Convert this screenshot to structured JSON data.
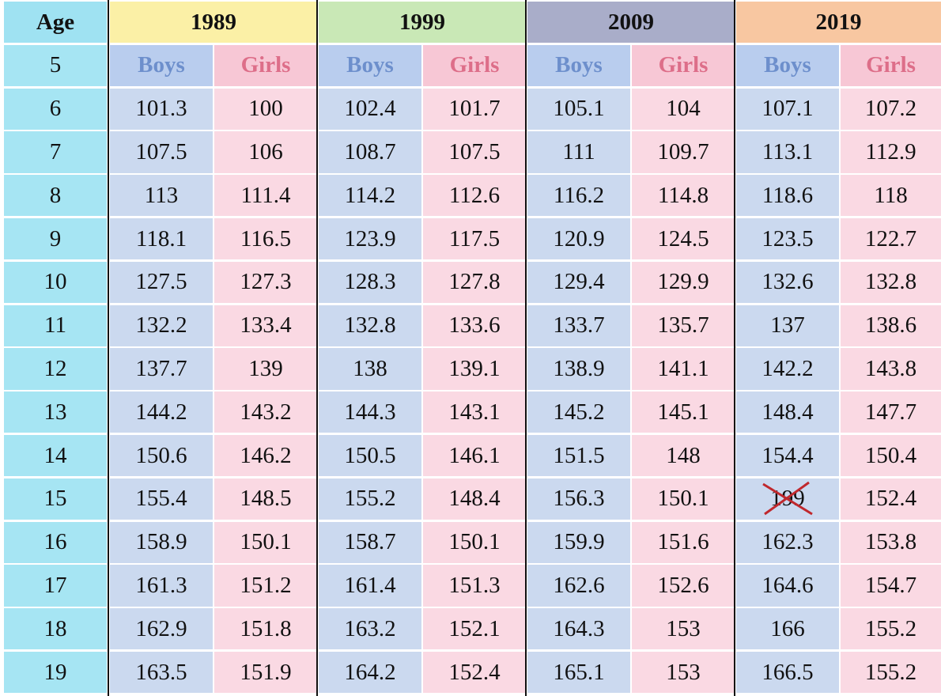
{
  "header": {
    "age": "Age",
    "years": [
      "1989",
      "1999",
      "2009",
      "2019"
    ]
  },
  "sub_header": {
    "age": "5",
    "cells": [
      "Boys",
      "Girls",
      "Boys",
      "Girls",
      "Boys",
      "Girls",
      "Boys",
      "Girls"
    ]
  },
  "rows": [
    {
      "age": "6",
      "values": [
        101.3,
        100,
        102.4,
        101.7,
        105.1,
        104,
        107.1,
        107.2
      ]
    },
    {
      "age": "7",
      "values": [
        107.5,
        106,
        108.7,
        107.5,
        111,
        109.7,
        113.1,
        112.9
      ]
    },
    {
      "age": "8",
      "values": [
        113,
        111.4,
        114.2,
        112.6,
        116.2,
        114.8,
        118.6,
        118
      ]
    },
    {
      "age": "9",
      "values": [
        118.1,
        116.5,
        123.9,
        117.5,
        120.9,
        124.5,
        123.5,
        122.7
      ]
    },
    {
      "age": "10",
      "values": [
        127.5,
        127.3,
        128.3,
        127.8,
        129.4,
        129.9,
        132.6,
        132.8
      ]
    },
    {
      "age": "11",
      "values": [
        132.2,
        133.4,
        132.8,
        133.6,
        133.7,
        135.7,
        137,
        138.6
      ]
    },
    {
      "age": "12",
      "values": [
        137.7,
        139,
        138,
        139.1,
        138.9,
        141.1,
        142.2,
        143.8
      ]
    },
    {
      "age": "13",
      "values": [
        144.2,
        143.2,
        144.3,
        143.1,
        145.2,
        145.1,
        148.4,
        147.7
      ]
    },
    {
      "age": "14",
      "values": [
        150.6,
        146.2,
        150.5,
        146.1,
        151.5,
        148,
        154.4,
        150.4
      ]
    },
    {
      "age": "15",
      "values": [
        155.4,
        148.5,
        155.2,
        148.4,
        156.3,
        150.1,
        199,
        152.4
      ]
    },
    {
      "age": "16",
      "values": [
        158.9,
        150.1,
        158.7,
        150.1,
        159.9,
        151.6,
        162.3,
        153.8
      ]
    },
    {
      "age": "17",
      "values": [
        161.3,
        151.2,
        161.4,
        151.3,
        162.6,
        152.6,
        164.6,
        154.7
      ]
    },
    {
      "age": "18",
      "values": [
        162.9,
        151.8,
        163.2,
        152.1,
        164.3,
        153,
        166,
        155.2
      ]
    },
    {
      "age": "19",
      "values": [
        163.5,
        151.9,
        164.2,
        152.4,
        165.1,
        153,
        166.5,
        155.2
      ]
    }
  ]
}
